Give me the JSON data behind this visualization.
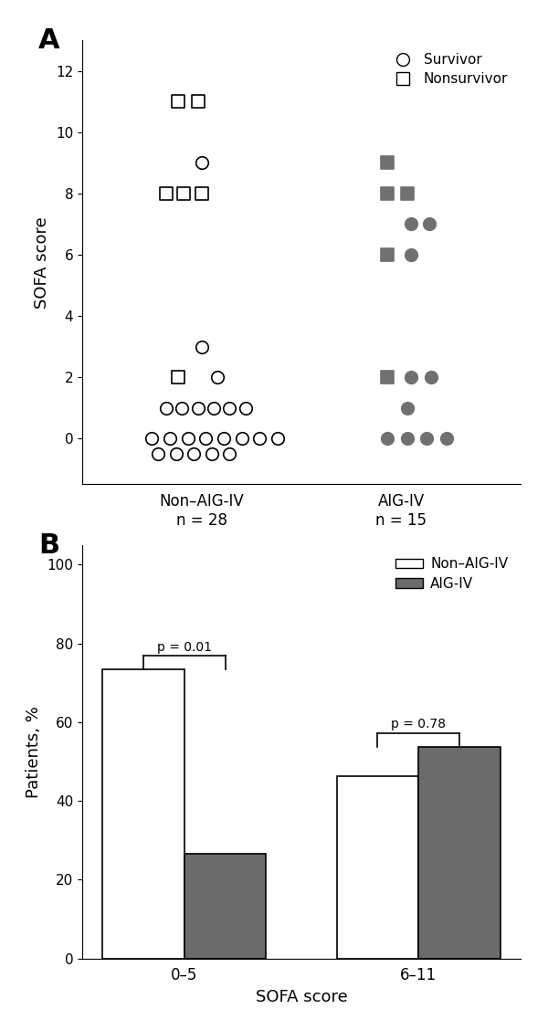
{
  "panel_A": {
    "non_aig_iv_surv_x": [
      1.0,
      1.0,
      1.08,
      0.82,
      0.9,
      0.98,
      1.06,
      1.14,
      1.22,
      0.75,
      0.84,
      0.93,
      1.02,
      1.11,
      1.2,
      1.29,
      1.38,
      0.78,
      0.87,
      0.96,
      1.05,
      1.14
    ],
    "non_aig_iv_surv_y": [
      9,
      3,
      2,
      1,
      1,
      1,
      1,
      1,
      1,
      0,
      0,
      0,
      0,
      0,
      0,
      0,
      0,
      -0.5,
      -0.5,
      -0.5,
      -0.5,
      -0.5
    ],
    "non_aig_iv_nonsurv_x": [
      0.88,
      0.98,
      0.82,
      0.91,
      1.0,
      0.88
    ],
    "non_aig_iv_nonsurv_y": [
      11,
      11,
      8,
      8,
      8,
      2
    ],
    "aig_iv_surv_x": [
      2.05,
      2.14,
      2.05,
      2.05,
      2.15,
      2.03,
      1.93,
      2.03,
      2.13,
      2.23
    ],
    "aig_iv_surv_y": [
      7,
      7,
      6,
      2,
      2,
      1,
      0,
      0,
      0,
      0
    ],
    "aig_iv_nonsurv_x": [
      1.93,
      1.93,
      2.03,
      1.93,
      1.93
    ],
    "aig_iv_nonsurv_y": [
      9,
      8,
      8,
      6,
      2
    ],
    "ylabel": "SOFA score",
    "ylim": [
      -1.5,
      13
    ],
    "yticks": [
      0,
      2,
      4,
      6,
      8,
      10,
      12
    ],
    "xlim": [
      0.4,
      2.6
    ],
    "label_non_aig": "Non–AIG-IV\nn = 28",
    "label_aig": "AIG-IV\nn = 15",
    "legend_survivor": "Survivor",
    "legend_nonsurvivor": "Nonsurvivor",
    "marker_size": 95,
    "gray_color": "#707070",
    "white_color": "#ffffff",
    "black_color": "#000000"
  },
  "panel_B": {
    "categories": [
      "0–5",
      "6–11"
    ],
    "non_aig_iv_values": [
      73.3,
      46.2
    ],
    "aig_iv_values": [
      26.7,
      53.8
    ],
    "bar_width": 0.35,
    "ylabel": "Patients, %",
    "xlabel": "SOFA score",
    "ylim": [
      0,
      105
    ],
    "yticks": [
      0,
      20,
      40,
      60,
      80,
      100
    ],
    "p_values": [
      "p = 0.01",
      "p = 0.78"
    ],
    "non_aig_color": "#ffffff",
    "aig_color": "#6b6b6b",
    "bar_edge_color": "#000000",
    "legend_non_aig": "Non–AIG-IV",
    "legend_aig": "AIG-IV"
  }
}
